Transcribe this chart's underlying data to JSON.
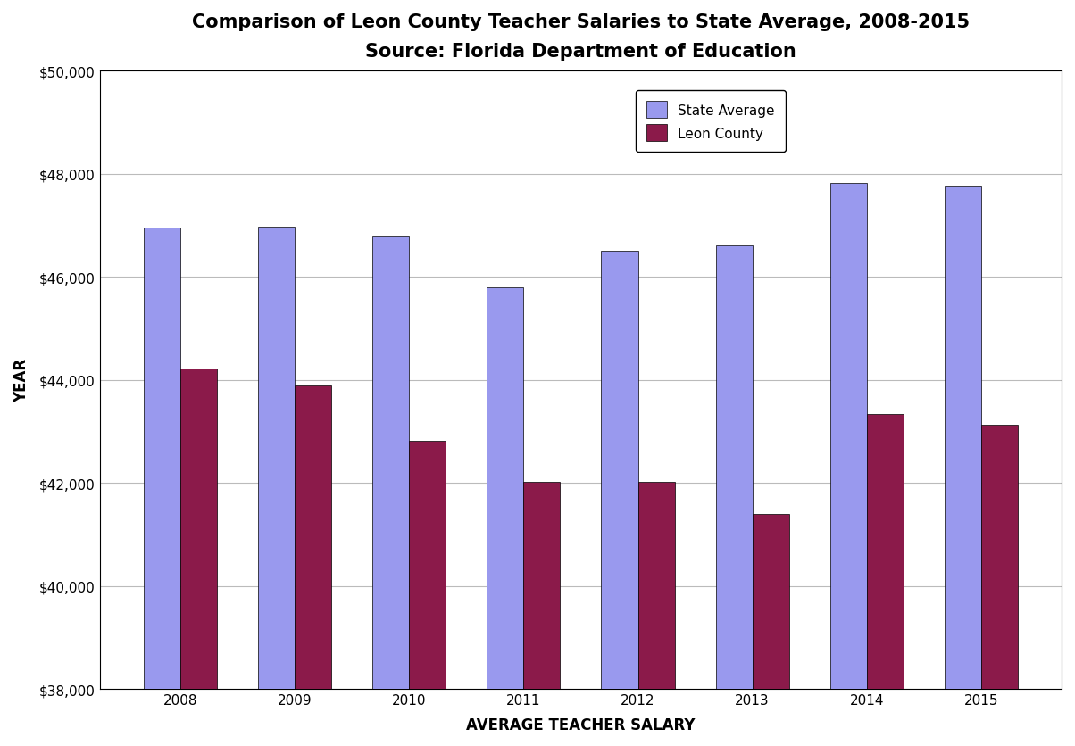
{
  "title": "Comparison of Leon County Teacher Salaries to State Average, 2008-2015",
  "subtitle": "Source: Florida Department of Education",
  "xlabel": "AVERAGE TEACHER SALARY",
  "ylabel": "YEAR",
  "years": [
    2008,
    2009,
    2010,
    2011,
    2012,
    2013,
    2014,
    2015
  ],
  "state_avg": [
    46950,
    46980,
    46780,
    45800,
    46500,
    46620,
    47820,
    47780
  ],
  "leon_county": [
    44220,
    43900,
    42820,
    42020,
    42020,
    41400,
    43330,
    43130
  ],
  "state_avg_color": "#9999ee",
  "leon_county_color": "#8b1a4a",
  "ylim_min": 38000,
  "ylim_max": 50000,
  "yticks": [
    38000,
    40000,
    42000,
    44000,
    46000,
    48000,
    50000
  ],
  "bar_width": 0.32,
  "legend_labels": [
    "State Average",
    "Leon County"
  ],
  "background_color": "#ffffff",
  "grid_color": "#bbbbbb",
  "title_fontsize": 15,
  "subtitle_fontsize": 10,
  "axis_label_fontsize": 12,
  "tick_fontsize": 11
}
